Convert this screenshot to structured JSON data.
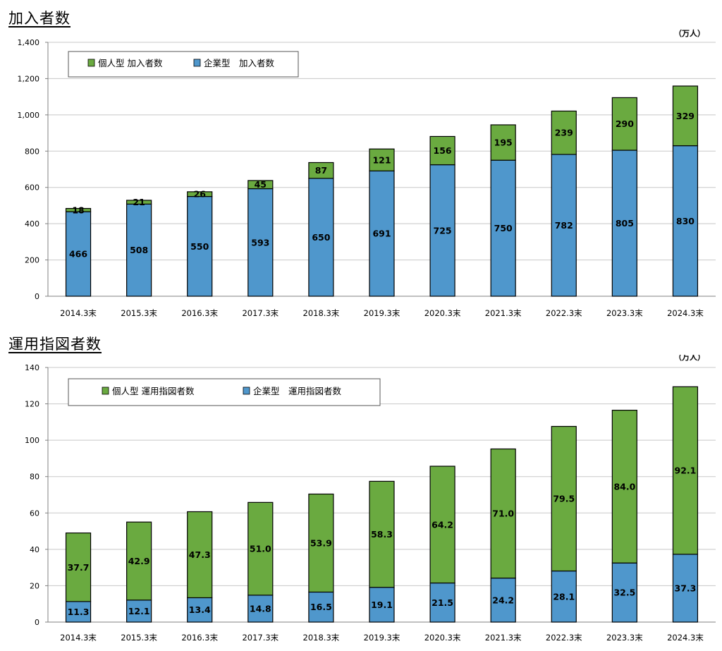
{
  "sections": [
    {
      "title": "加入者数"
    },
    {
      "title": "運用指図者数"
    }
  ],
  "colors": {
    "individual": "#6aaa40",
    "corporate": "#4f97cc",
    "grid": "#c8c8c8",
    "axis": "#808080"
  },
  "chart_data": [
    {
      "type": "bar",
      "stacked": true,
      "title": "加入者数",
      "unit": "（万人）",
      "categories": [
        "2014.3末",
        "2015.3末",
        "2016.3末",
        "2017.3末",
        "2018.3末",
        "2019.3末",
        "2020.3末",
        "2021.3末",
        "2022.3末",
        "2023.3末",
        "2024.3末"
      ],
      "series": [
        {
          "name": "企業型　加入者数",
          "color": "#4f97cc",
          "values": [
            466,
            508,
            550,
            593,
            650,
            691,
            725,
            750,
            782,
            805,
            830
          ]
        },
        {
          "name": "個人型  加入者数",
          "color": "#6aaa40",
          "values": [
            18,
            21,
            26,
            45,
            87,
            121,
            156,
            195,
            239,
            290,
            329
          ]
        }
      ],
      "ylim": [
        0,
        1400
      ],
      "yticks": [
        0,
        200,
        400,
        600,
        800,
        1000,
        1200,
        1400
      ],
      "ytick_labels": [
        "0",
        "200",
        "400",
        "600",
        "800",
        "1,000",
        "1,200",
        "1,400"
      ],
      "grid": true,
      "legend": "top-left"
    },
    {
      "type": "bar",
      "stacked": true,
      "title": "運用指図者数",
      "unit": "（万人）",
      "categories": [
        "2014.3末",
        "2015.3末",
        "2016.3末",
        "2017.3末",
        "2018.3末",
        "2019.3末",
        "2020.3末",
        "2021.3末",
        "2022.3末",
        "2023.3末",
        "2024.3末"
      ],
      "series": [
        {
          "name": "企業型　運用指図者数",
          "color": "#4f97cc",
          "values": [
            11.3,
            12.1,
            13.4,
            14.8,
            16.5,
            19.1,
            21.5,
            24.2,
            28.1,
            32.5,
            37.3
          ]
        },
        {
          "name": "個人型  運用指図者数",
          "color": "#6aaa40",
          "values": [
            37.7,
            42.9,
            47.3,
            51.0,
            53.9,
            58.3,
            64.2,
            71.0,
            79.5,
            84.0,
            92.1
          ]
        }
      ],
      "ylim": [
        0,
        140
      ],
      "yticks": [
        0,
        20,
        40,
        60,
        80,
        100,
        120,
        140
      ],
      "ytick_labels": [
        "0",
        "20",
        "40",
        "60",
        "80",
        "100",
        "120",
        "140"
      ],
      "grid": true,
      "legend": "top-left"
    }
  ]
}
